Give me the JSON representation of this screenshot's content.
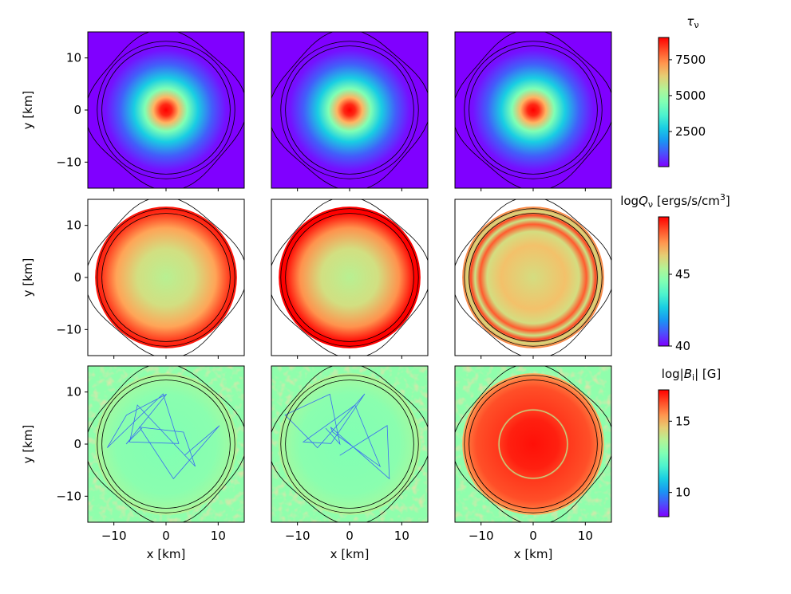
{
  "chart_data": {
    "type": "heatmap",
    "layout": "3 rows x 3 columns, shared colorbar per row",
    "xlabel": "x [km]",
    "ylabel": "y [km]",
    "xlim": [
      -15,
      15
    ],
    "ylim": [
      -15,
      15
    ],
    "xticks": [
      -10,
      0,
      10
    ],
    "yticks": [
      -10,
      0,
      10
    ],
    "xtick_labels": [
      "−10",
      "0",
      "10"
    ],
    "ytick_labels": [
      "−10",
      "0",
      "10"
    ],
    "colormap": "rainbow",
    "colormap_stops": [
      "#8000ff",
      "#00b4eb",
      "#80ffb4",
      "#ffb462",
      "#ff0000"
    ],
    "contour_radii_km": [
      12.3,
      13.2,
      14.3
    ],
    "rows": [
      {
        "quantity": "tau_nu",
        "colorbar_label": {
          "main": "τ",
          "sub": "ν",
          "rest": "",
          "sup": "",
          "end": ""
        },
        "clim": [
          50,
          9050
        ],
        "cticks": [
          2500,
          5000,
          7500
        ],
        "ctick_labels": [
          "2500",
          "5000",
          "7500"
        ],
        "panels": [
          {
            "center_value": 9000,
            "edge_value": 50,
            "note": "centrally peaked"
          },
          {
            "center_value": 9000,
            "edge_value": 50,
            "note": "centrally peaked"
          },
          {
            "center_value": 9000,
            "edge_value": 50,
            "note": "centrally peaked"
          }
        ]
      },
      {
        "quantity": "logQ_nu",
        "colorbar_label": {
          "main": "log",
          "italic": "Q",
          "sub": "ν",
          "rest": " [ergs/s/cm",
          "sup": "3",
          "end": "]"
        },
        "clim": [
          40,
          49
        ],
        "cticks": [
          40,
          45
        ],
        "ctick_labels": [
          "40",
          "45"
        ],
        "panels": [
          {
            "center_value": 45.5,
            "edge_value": 48.5
          },
          {
            "center_value": 45.5,
            "edge_value": 49.0
          },
          {
            "center_value": 46.0,
            "edge_value": 47.5
          }
        ]
      },
      {
        "quantity": "log|B_i|",
        "colorbar_label": {
          "main": "log|",
          "italic": "B",
          "sub": "i",
          "rest": "| [G]",
          "sup": "",
          "end": ""
        },
        "clim": [
          8.3,
          17.2
        ],
        "cticks": [
          10,
          15
        ],
        "ctick_labels": [
          "10",
          "15"
        ],
        "panels": [
          {
            "center_value": 12.8,
            "edge_value": 13.5
          },
          {
            "center_value": 12.8,
            "edge_value": 13.5
          },
          {
            "center_value": 17.0,
            "edge_value": 16.2
          }
        ]
      }
    ]
  }
}
